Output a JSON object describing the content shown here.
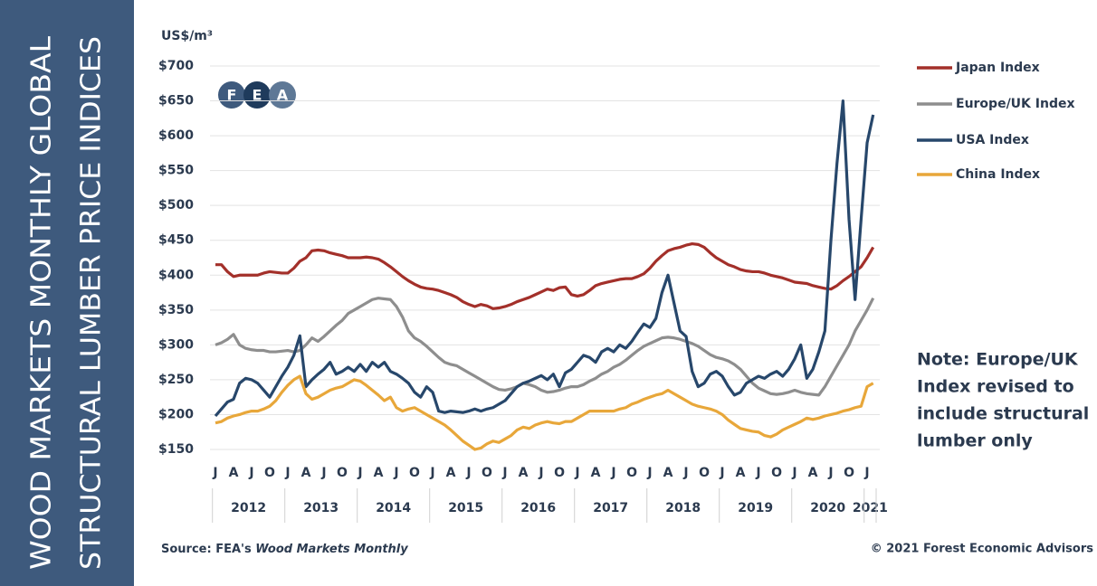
{
  "chart_data": {
    "type": "line",
    "title": [
      "WOOD MARKETS MONTHLY GLOBAL",
      "STRUCTURAL LUMBER PRICE INDICES"
    ],
    "y_unit": "US$/m³",
    "logo": [
      "F",
      "E",
      "A"
    ],
    "categories": [
      "J",
      null,
      null,
      "A",
      null,
      null,
      "J",
      null,
      null,
      "O",
      null,
      null,
      "J",
      null,
      null,
      "A",
      null,
      null,
      "J",
      null,
      null,
      "O",
      null,
      null,
      "J",
      null,
      null,
      "A",
      null,
      null,
      "J",
      null,
      null,
      "O",
      null,
      null,
      "J",
      null,
      null,
      "A",
      null,
      null,
      "J",
      null,
      null,
      "O",
      null,
      null,
      "J",
      null,
      null,
      "A",
      null,
      null,
      "J",
      null,
      null,
      "O",
      null,
      null,
      "J",
      null,
      null,
      "A",
      null,
      null,
      "J",
      null,
      null,
      "O",
      null,
      null,
      "J",
      null,
      null,
      "A",
      null,
      null,
      "J",
      null,
      null,
      "O",
      null,
      null,
      "J",
      null,
      null,
      "A",
      null,
      null,
      "J",
      null,
      null,
      "O",
      null,
      null,
      "J",
      null,
      null,
      "A",
      null,
      null,
      "J",
      null,
      null,
      "O",
      null,
      null,
      "J",
      null
    ],
    "years": [
      "2012",
      "2013",
      "2014",
      "2015",
      "2016",
      "2017",
      "2018",
      "2019",
      "2020",
      "2021"
    ],
    "ylim": [
      150,
      700
    ],
    "yticks": [
      {
        "value": 150,
        "label": "$150"
      },
      {
        "value": 200,
        "label": "$200"
      },
      {
        "value": 250,
        "label": "$250"
      },
      {
        "value": 300,
        "label": "$300"
      },
      {
        "value": 350,
        "label": "$350"
      },
      {
        "value": 400,
        "label": "$400"
      },
      {
        "value": 450,
        "label": "$450"
      },
      {
        "value": 500,
        "label": "$500"
      },
      {
        "value": 550,
        "label": "$550"
      },
      {
        "value": 600,
        "label": "$600"
      },
      {
        "value": 650,
        "label": "$650"
      },
      {
        "value": 700,
        "label": "$700"
      }
    ],
    "grid": true,
    "legend": "right",
    "series": [
      {
        "name": "Japan Index",
        "color": "#a3302a",
        "values": [
          415,
          415,
          405,
          398,
          400,
          400,
          400,
          400,
          403,
          405,
          404,
          403,
          403,
          410,
          420,
          425,
          435,
          436,
          435,
          432,
          430,
          428,
          425,
          425,
          425,
          426,
          425,
          423,
          418,
          412,
          405,
          398,
          392,
          387,
          383,
          381,
          380,
          378,
          375,
          372,
          368,
          362,
          358,
          355,
          358,
          356,
          352,
          353,
          355,
          358,
          362,
          365,
          368,
          372,
          376,
          380,
          378,
          382,
          383,
          372,
          370,
          372,
          378,
          385,
          388,
          390,
          392,
          394,
          395,
          395,
          398,
          402,
          410,
          420,
          428,
          435,
          438,
          440,
          443,
          445,
          444,
          440,
          432,
          425,
          420,
          415,
          412,
          408,
          406,
          405,
          405,
          403,
          400,
          398,
          396,
          393,
          390,
          389,
          388,
          385,
          383,
          381,
          380,
          385,
          392,
          398,
          405,
          412,
          425,
          440
        ]
      },
      {
        "name": "Europe/UK Index",
        "color": "#8e8e8e",
        "values": [
          300,
          303,
          308,
          315,
          300,
          295,
          293,
          292,
          292,
          290,
          290,
          291,
          292,
          290,
          292,
          300,
          310,
          305,
          312,
          320,
          328,
          335,
          345,
          350,
          355,
          360,
          365,
          367,
          366,
          365,
          355,
          340,
          320,
          310,
          305,
          298,
          290,
          282,
          275,
          272,
          270,
          265,
          260,
          255,
          250,
          245,
          240,
          236,
          235,
          237,
          240,
          245,
          243,
          240,
          235,
          232,
          233,
          235,
          238,
          240,
          240,
          243,
          248,
          252,
          258,
          262,
          268,
          272,
          278,
          285,
          292,
          298,
          302,
          306,
          310,
          311,
          310,
          308,
          305,
          302,
          298,
          292,
          286,
          282,
          280,
          277,
          272,
          265,
          255,
          245,
          238,
          234,
          230,
          229,
          230,
          232,
          235,
          232,
          230,
          229,
          228,
          240,
          255,
          270,
          285,
          300,
          320,
          335,
          350,
          367
        ]
      },
      {
        "name": "USA Index",
        "color": "#27476b",
        "values": [
          198,
          208,
          218,
          222,
          245,
          252,
          250,
          245,
          235,
          225,
          240,
          255,
          268,
          285,
          313,
          240,
          250,
          258,
          265,
          275,
          258,
          262,
          268,
          262,
          272,
          262,
          275,
          268,
          275,
          262,
          258,
          252,
          245,
          232,
          225,
          240,
          232,
          205,
          203,
          205,
          204,
          203,
          205,
          208,
          205,
          208,
          210,
          215,
          220,
          230,
          240,
          245,
          248,
          252,
          256,
          250,
          258,
          240,
          260,
          265,
          275,
          285,
          282,
          275,
          290,
          295,
          290,
          300,
          295,
          305,
          318,
          330,
          325,
          338,
          375,
          400,
          360,
          320,
          312,
          262,
          240,
          245,
          258,
          262,
          255,
          240,
          228,
          232,
          245,
          250,
          255,
          252,
          258,
          262,
          255,
          265,
          280,
          300,
          252,
          265,
          290,
          320,
          450,
          560,
          650,
          480,
          365,
          480,
          590,
          630
        ]
      },
      {
        "name": "China Index",
        "color": "#e8a73a",
        "values": [
          188,
          190,
          195,
          198,
          200,
          203,
          205,
          205,
          208,
          212,
          220,
          232,
          242,
          250,
          255,
          230,
          222,
          225,
          230,
          235,
          238,
          240,
          245,
          250,
          248,
          242,
          235,
          228,
          220,
          225,
          210,
          205,
          208,
          210,
          205,
          200,
          195,
          190,
          185,
          178,
          170,
          162,
          156,
          150,
          152,
          158,
          162,
          160,
          165,
          170,
          178,
          182,
          180,
          185,
          188,
          190,
          188,
          187,
          190,
          190,
          195,
          200,
          205,
          205,
          205,
          205,
          205,
          208,
          210,
          215,
          218,
          222,
          225,
          228,
          230,
          235,
          230,
          225,
          220,
          215,
          212,
          210,
          208,
          205,
          200,
          192,
          186,
          180,
          178,
          176,
          175,
          170,
          168,
          172,
          178,
          182,
          186,
          190,
          195,
          193,
          195,
          198,
          200,
          202,
          205,
          207,
          210,
          212,
          240,
          245
        ]
      }
    ],
    "note": [
      "Note: Europe/UK",
      "Index revised to",
      "include structural",
      "lumber only"
    ],
    "source": [
      "Source: FEA's ",
      "Wood Markets Monthly"
    ],
    "copyright": "© 2021 Forest Economic Advisors"
  }
}
